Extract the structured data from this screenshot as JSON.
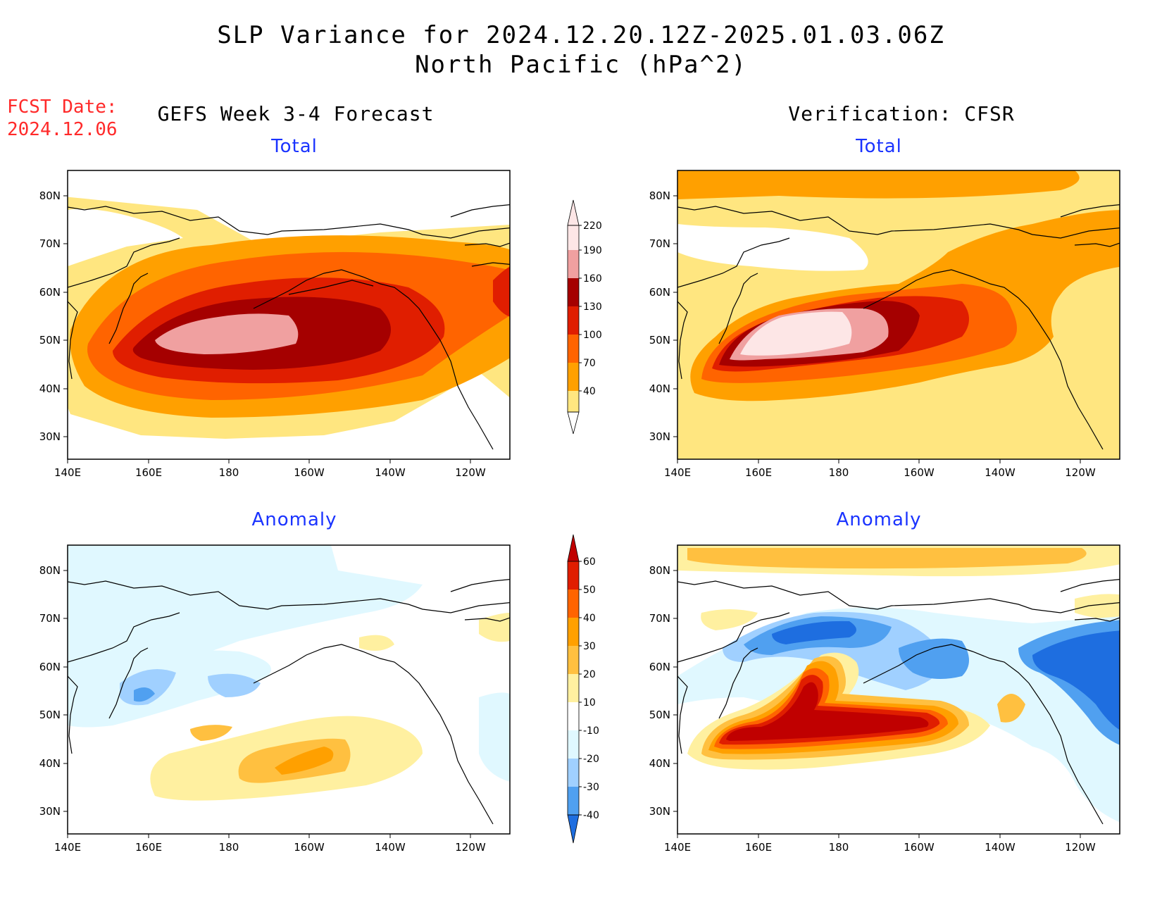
{
  "header": {
    "title_line1": "SLP Variance for 2024.12.20.12Z-2025.01.03.06Z",
    "title_line2": "North Pacific (hPa^2)"
  },
  "fcst": {
    "label": "FCST Date:",
    "date": "2024.12.06"
  },
  "columns": {
    "left": "GEFS Week 3-4 Forecast",
    "right": "Verification: CFSR"
  },
  "panel_titles": {
    "total": "Total",
    "anomaly": "Anomaly"
  },
  "axes": {
    "lon_ticks": [
      "140E",
      "160E",
      "180",
      "160W",
      "140W",
      "120W"
    ],
    "lat_ticks": [
      "80N",
      "70N",
      "60N",
      "50N",
      "40N",
      "30N"
    ]
  },
  "colorbars": {
    "total": {
      "levels": [
        "40",
        "70",
        "100",
        "130",
        "160",
        "190",
        "220"
      ],
      "colors": [
        "#ffe680",
        "#ffa000",
        "#ff6400",
        "#e01e00",
        "#a50000",
        "#f0a0a0",
        "#fde6e6"
      ]
    },
    "anomaly": {
      "levels": [
        "60",
        "50",
        "40",
        "30",
        "20",
        "10",
        "-10",
        "-20",
        "-30",
        "-40"
      ],
      "colors": [
        "#c00000",
        "#e01e00",
        "#ff6400",
        "#ffa000",
        "#ffc040",
        "#fff0a0",
        "#ffffff",
        "#e0f8ff",
        "#a0d0ff",
        "#50a0f0",
        "#1e6ee0"
      ]
    }
  },
  "colors": {
    "fcst_text": "#ff2a2a",
    "panel_title": "#1a33ff"
  }
}
